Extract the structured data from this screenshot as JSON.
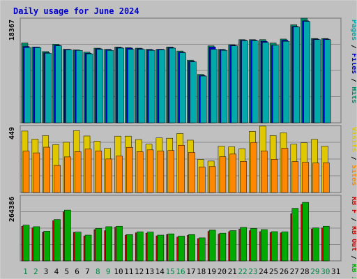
{
  "title": "Daily usage for June 2024",
  "colors": {
    "background": "#c0c0c0",
    "grid": "#8c8c8c",
    "frame": "#707070",
    "title": "#0000cc",
    "pages": "#00aaaa",
    "files": "#0000cc",
    "hits": "#008866",
    "visits": "#e0c800",
    "sites": "#ff8800",
    "kb_in": "#00aa00",
    "kb_out": "#cc0000",
    "kb_f": "#cc0000",
    "weekday": "#000000",
    "weekend": "#008844"
  },
  "chart_data": [
    {
      "type": "bar",
      "title": "",
      "xlabel": "",
      "ylabel": "Pages / Files / Hits",
      "ymax_label": "18367",
      "ylim": [
        0,
        18367
      ],
      "categories": [
        "1",
        "2",
        "3",
        "4",
        "5",
        "6",
        "7",
        "8",
        "9",
        "10",
        "11",
        "12",
        "13",
        "14",
        "15",
        "16",
        "17",
        "18",
        "19",
        "20",
        "21",
        "22",
        "23",
        "24",
        "25",
        "26",
        "27",
        "28",
        "29",
        "30",
        "31"
      ],
      "series": [
        {
          "name": "Hits",
          "values": [
            14000,
            13300,
            12500,
            13800,
            12900,
            12800,
            12400,
            13100,
            12900,
            13300,
            13200,
            13100,
            12900,
            12900,
            13300,
            12600,
            11000,
            8500,
            13500,
            12900,
            13700,
            14600,
            14600,
            14600,
            14000,
            14700,
            17200,
            18400,
            14800,
            14800,
            0
          ]
        },
        {
          "name": "Files",
          "values": [
            13400,
            13300,
            12300,
            13600,
            12900,
            12700,
            12200,
            13000,
            12800,
            13200,
            13100,
            13000,
            12800,
            12900,
            13200,
            12400,
            10800,
            8300,
            13300,
            12800,
            13600,
            14500,
            14500,
            14300,
            13600,
            14500,
            16900,
            17900,
            14700,
            14700,
            0
          ]
        },
        {
          "name": "Pages",
          "values": [
            13200,
            13200,
            12200,
            13500,
            12800,
            12700,
            12100,
            12900,
            12700,
            13100,
            12900,
            12900,
            12700,
            12800,
            13100,
            12300,
            10700,
            8200,
            12900,
            12700,
            13500,
            14400,
            14400,
            14100,
            13600,
            14300,
            16800,
            17800,
            14600,
            14600,
            0
          ]
        }
      ]
    },
    {
      "type": "bar",
      "title": "",
      "xlabel": "",
      "ylabel": "Visits / Sites",
      "ymax_label": "449",
      "ylim": [
        0,
        449
      ],
      "categories": [
        "1",
        "2",
        "3",
        "4",
        "5",
        "6",
        "7",
        "8",
        "9",
        "10",
        "11",
        "12",
        "13",
        "14",
        "15",
        "16",
        "17",
        "18",
        "19",
        "20",
        "21",
        "22",
        "23",
        "24",
        "25",
        "26",
        "27",
        "28",
        "29",
        "30",
        "31"
      ],
      "series": [
        {
          "name": "Visits",
          "values": [
            412,
            358,
            381,
            321,
            337,
            415,
            379,
            344,
            296,
            378,
            378,
            355,
            324,
            366,
            364,
            396,
            351,
            222,
            211,
            311,
            307,
            294,
            410,
            445,
            382,
            401,
            324,
            334,
            357,
            311,
            0
          ]
        },
        {
          "name": "Sites",
          "values": [
            278,
            266,
            304,
            182,
            239,
            274,
            291,
            279,
            225,
            244,
            303,
            274,
            286,
            278,
            282,
            317,
            269,
            171,
            174,
            240,
            258,
            209,
            336,
            279,
            223,
            297,
            208,
            203,
            198,
            199,
            0
          ]
        }
      ]
    },
    {
      "type": "bar",
      "title": "",
      "xlabel": "",
      "ylabel": "KB F / KB Out / KB In",
      "ymax_label": "264386",
      "ylim": [
        0,
        264386
      ],
      "categories": [
        "1",
        "2",
        "3",
        "4",
        "5",
        "6",
        "7",
        "8",
        "9",
        "10",
        "11",
        "12",
        "13",
        "14",
        "15",
        "16",
        "17",
        "18",
        "19",
        "20",
        "21",
        "22",
        "23",
        "24",
        "25",
        "26",
        "27",
        "28",
        "29",
        "30",
        "31"
      ],
      "series": [
        {
          "name": "KB Out",
          "values": [
            140000,
            133000,
            115000,
            162000,
            198000,
            115000,
            100000,
            126000,
            122000,
            136000,
            104000,
            113000,
            112000,
            101000,
            106000,
            96000,
            103000,
            90000,
            119000,
            108000,
            118000,
            128000,
            122000,
            118000,
            114000,
            113000,
            190000,
            228000,
            129000,
            133000,
            0
          ]
        },
        {
          "name": "KB In",
          "values": [
            144000,
            138000,
            120000,
            167000,
            205000,
            116000,
            104000,
            131000,
            138000,
            140000,
            106000,
            117000,
            116000,
            104000,
            109000,
            100000,
            106000,
            93000,
            124000,
            112000,
            122000,
            135000,
            131000,
            126000,
            118000,
            117000,
            212000,
            236000,
            133000,
            140000,
            0
          ]
        }
      ]
    }
  ],
  "right_labels": [
    [
      {
        "text": "Pages",
        "color": "#00aaaa"
      },
      {
        "text": " / ",
        "color": "#000000"
      },
      {
        "text": "Files",
        "color": "#0000cc"
      },
      {
        "text": " / ",
        "color": "#000000"
      },
      {
        "text": "Hits",
        "color": "#008866"
      }
    ],
    [
      {
        "text": "Visits",
        "color": "#e0c800"
      },
      {
        "text": " / ",
        "color": "#000000"
      },
      {
        "text": "Sites",
        "color": "#ff8800"
      }
    ],
    [
      {
        "text": "KB F",
        "color": "#cc0000"
      },
      {
        "text": " / ",
        "color": "#000000"
      },
      {
        "text": "KB Out",
        "color": "#cc0000"
      },
      {
        "text": " / ",
        "color": "#000000"
      },
      {
        "text": "KB In",
        "color": "#00aa00"
      }
    ]
  ],
  "days": [
    {
      "label": "1",
      "weekend": true
    },
    {
      "label": "2",
      "weekend": true
    },
    {
      "label": "3",
      "weekend": false
    },
    {
      "label": "4",
      "weekend": false
    },
    {
      "label": "5",
      "weekend": false
    },
    {
      "label": "6",
      "weekend": false
    },
    {
      "label": "7",
      "weekend": false
    },
    {
      "label": "8",
      "weekend": true
    },
    {
      "label": "9",
      "weekend": true
    },
    {
      "label": "10",
      "weekend": false
    },
    {
      "label": "11",
      "weekend": false
    },
    {
      "label": "12",
      "weekend": false
    },
    {
      "label": "13",
      "weekend": false
    },
    {
      "label": "14",
      "weekend": false
    },
    {
      "label": "15",
      "weekend": true
    },
    {
      "label": "16",
      "weekend": true
    },
    {
      "label": "17",
      "weekend": false
    },
    {
      "label": "18",
      "weekend": false
    },
    {
      "label": "19",
      "weekend": false
    },
    {
      "label": "20",
      "weekend": false
    },
    {
      "label": "21",
      "weekend": false
    },
    {
      "label": "22",
      "weekend": true
    },
    {
      "label": "23",
      "weekend": true
    },
    {
      "label": "24",
      "weekend": false
    },
    {
      "label": "25",
      "weekend": false
    },
    {
      "label": "26",
      "weekend": false
    },
    {
      "label": "27",
      "weekend": false
    },
    {
      "label": "28",
      "weekend": false
    },
    {
      "label": "29",
      "weekend": true
    },
    {
      "label": "30",
      "weekend": true
    },
    {
      "label": "31",
      "weekend": false
    }
  ]
}
